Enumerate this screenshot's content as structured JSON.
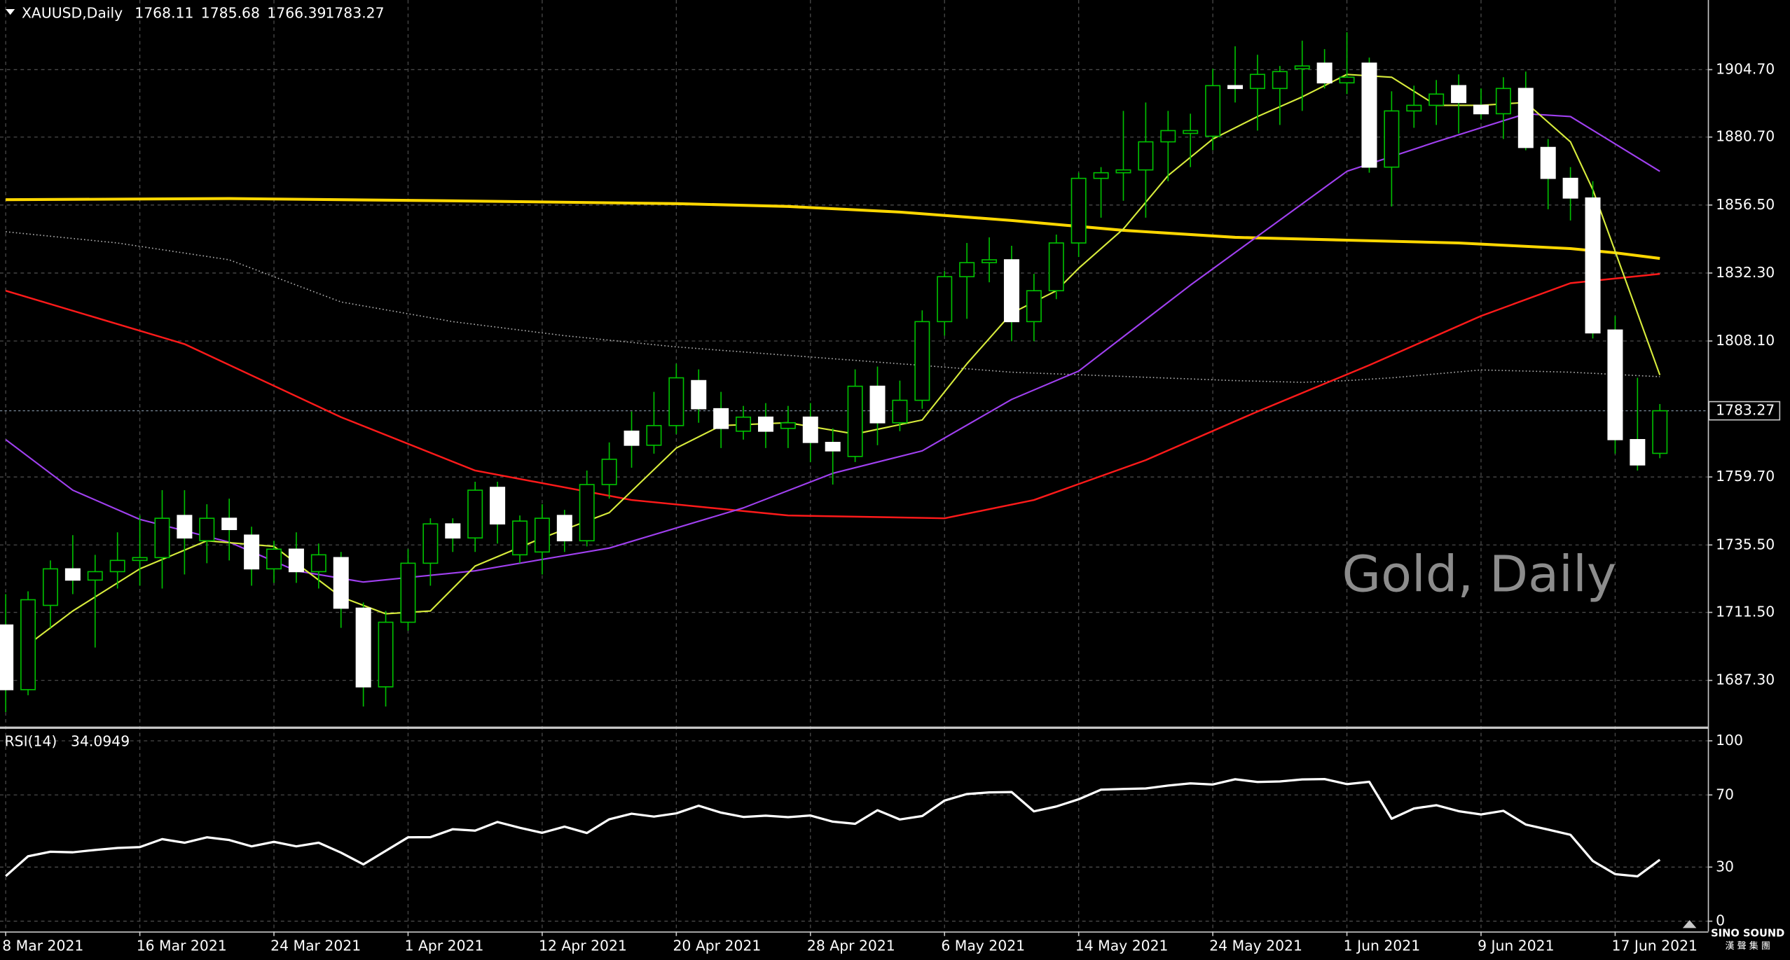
{
  "chart_data": {
    "type": "candlestick",
    "title": "XAUUSD,Daily",
    "watermark": "Gold, Daily",
    "categories": [
      "8 Mar 2021",
      null,
      null,
      null,
      null,
      null,
      "16 Mar 2021",
      null,
      null,
      null,
      null,
      null,
      "24 Mar 2021",
      null,
      null,
      null,
      null,
      null,
      "1 Apr 2021",
      null,
      null,
      null,
      null,
      null,
      "12 Apr 2021",
      null,
      null,
      null,
      null,
      null,
      "20 Apr 2021",
      null,
      null,
      null,
      null,
      null,
      "28 Apr 2021",
      null,
      null,
      null,
      null,
      null,
      "6 May 2021",
      null,
      null,
      null,
      null,
      null,
      "14 May 2021",
      null,
      null,
      null,
      null,
      null,
      "24 May 2021",
      null,
      null,
      null,
      null,
      null,
      "1 Jun 2021",
      null,
      null,
      null,
      null,
      null,
      "9 Jun 2021",
      null,
      null,
      null,
      null,
      null,
      "17 Jun 2021",
      null,
      null
    ],
    "ohlc": [
      [
        1707,
        1718,
        1676,
        1684
      ],
      [
        1684,
        1719,
        1682,
        1716
      ],
      [
        1714,
        1730,
        1706,
        1727
      ],
      [
        1727,
        1739,
        1718,
        1723
      ],
      [
        1723,
        1732,
        1699,
        1726
      ],
      [
        1726,
        1740,
        1720,
        1730
      ],
      [
        1730,
        1746,
        1721,
        1731
      ],
      [
        1731,
        1755,
        1720,
        1745
      ],
      [
        1746,
        1755,
        1725,
        1738
      ],
      [
        1737,
        1750,
        1729,
        1745
      ],
      [
        1745,
        1752,
        1730,
        1741
      ],
      [
        1739,
        1742,
        1721,
        1727
      ],
      [
        1727,
        1737,
        1722,
        1734
      ],
      [
        1734,
        1740,
        1722,
        1726
      ],
      [
        1726,
        1736,
        1720,
        1732
      ],
      [
        1731,
        1733,
        1706,
        1713
      ],
      [
        1713,
        1715,
        1678,
        1685
      ],
      [
        1685,
        1712,
        1678,
        1708
      ],
      [
        1708,
        1734,
        1705,
        1729
      ],
      [
        1729,
        1745,
        1721,
        1743
      ],
      [
        1743,
        1745,
        1733,
        1738
      ],
      [
        1738,
        1758,
        1733,
        1755
      ],
      [
        1756,
        1758,
        1736,
        1743
      ],
      [
        1732,
        1746,
        1729,
        1744
      ],
      [
        1733,
        1750,
        1725,
        1745
      ],
      [
        1746,
        1748,
        1733,
        1737
      ],
      [
        1737,
        1762,
        1735,
        1757
      ],
      [
        1757,
        1772,
        1752,
        1766
      ],
      [
        1776,
        1783,
        1763,
        1771
      ],
      [
        1771,
        1790,
        1768,
        1778
      ],
      [
        1778,
        1800,
        1775,
        1795
      ],
      [
        1794,
        1798,
        1779,
        1784
      ],
      [
        1784,
        1790,
        1770,
        1777
      ],
      [
        1776,
        1785,
        1773,
        1781
      ],
      [
        1781,
        1786,
        1770,
        1776
      ],
      [
        1777,
        1785,
        1770,
        1779
      ],
      [
        1781,
        1786,
        1765,
        1772
      ],
      [
        1772,
        1777,
        1757,
        1769
      ],
      [
        1767,
        1798,
        1765,
        1792
      ],
      [
        1792,
        1799,
        1771,
        1779
      ],
      [
        1779,
        1794,
        1776,
        1787
      ],
      [
        1787,
        1819,
        1784,
        1815
      ],
      [
        1815,
        1833,
        1810,
        1831
      ],
      [
        1831,
        1843,
        1816,
        1836
      ],
      [
        1836,
        1845,
        1829,
        1837
      ],
      [
        1837,
        1842,
        1808,
        1815
      ],
      [
        1815,
        1832,
        1808,
        1826
      ],
      [
        1826,
        1846,
        1823,
        1843
      ],
      [
        1843,
        1868,
        1838,
        1866
      ],
      [
        1866,
        1870,
        1852,
        1868
      ],
      [
        1868,
        1890,
        1858,
        1869
      ],
      [
        1869,
        1893,
        1852,
        1879
      ],
      [
        1879,
        1890,
        1865,
        1883
      ],
      [
        1882,
        1889,
        1870,
        1883
      ],
      [
        1881,
        1905,
        1876,
        1899
      ],
      [
        1899,
        1913,
        1893,
        1898
      ],
      [
        1898,
        1910,
        1883,
        1903
      ],
      [
        1898,
        1906,
        1885,
        1904
      ],
      [
        1905,
        1915,
        1890,
        1906
      ],
      [
        1907,
        1912,
        1898,
        1900
      ],
      [
        1900,
        1918,
        1896,
        1902
      ],
      [
        1907,
        1909,
        1868,
        1870
      ],
      [
        1870,
        1897,
        1856,
        1890
      ],
      [
        1890,
        1899,
        1884,
        1892
      ],
      [
        1892,
        1901,
        1885,
        1896
      ],
      [
        1899,
        1903,
        1882,
        1893
      ],
      [
        1892,
        1898,
        1887,
        1889
      ],
      [
        1889,
        1902,
        1880,
        1898
      ],
      [
        1898,
        1904,
        1876,
        1877
      ],
      [
        1877,
        1880,
        1855,
        1866
      ],
      [
        1866,
        1870,
        1851,
        1859
      ],
      [
        1859,
        1865,
        1809,
        1811
      ],
      [
        1812,
        1817,
        1768,
        1773
      ],
      [
        1773,
        1795,
        1762,
        1764
      ],
      [
        1768.11,
        1785.68,
        1766.39,
        1783.27
      ]
    ],
    "up_color": "#000000",
    "down_color": "#ffffff",
    "wick_color": "#00c000",
    "overlays": [
      {
        "color": "#ffd700",
        "width": 2.5,
        "dash": "none",
        "x": [
          0,
          10,
          20,
          30,
          35,
          40,
          45,
          50,
          55,
          60,
          65,
          70,
          72,
          74
        ],
        "values": [
          1858.4,
          1858.8,
          1858.0,
          1857.0,
          1856.0,
          1854.0,
          1851.0,
          1847.5,
          1845.0,
          1844.0,
          1843.0,
          1841.0,
          1839.5,
          1837.5
        ]
      },
      {
        "color": "#b0b0b0",
        "width": 1,
        "dash": "1 2",
        "x": [
          0,
          5,
          10,
          15,
          20,
          25,
          30,
          35,
          40,
          45,
          50,
          55,
          58,
          60,
          62,
          66,
          70,
          74
        ],
        "values": [
          1847,
          1843,
          1837,
          1822,
          1815,
          1810,
          1806,
          1803,
          1800,
          1797,
          1795.5,
          1794,
          1793.4,
          1794,
          1795,
          1797.8,
          1797,
          1795.4
        ]
      },
      {
        "color": "#ff1a1a",
        "width": 1.5,
        "dash": "none",
        "x": [
          0,
          8,
          15,
          21,
          28,
          35,
          42,
          46,
          51,
          56,
          61,
          66,
          70,
          74
        ],
        "values": [
          1826,
          1807,
          1781,
          1762,
          1751.5,
          1746,
          1745,
          1751.5,
          1765.7,
          1783,
          1799.5,
          1817,
          1828.7,
          1832
        ]
      },
      {
        "color": "#a040f0",
        "width": 1.3,
        "dash": "none",
        "x": [
          0,
          3,
          6,
          10,
          13,
          16,
          21,
          27,
          33,
          37,
          41,
          45,
          48,
          53,
          60,
          64,
          68,
          70,
          74
        ],
        "values": [
          1773,
          1755,
          1744.6,
          1736.5,
          1726.3,
          1722.3,
          1726.3,
          1734.4,
          1748.7,
          1761,
          1769,
          1787.3,
          1797.4,
          1828,
          1868.5,
          1879,
          1889,
          1888,
          1868.5
        ]
      },
      {
        "color": "#d8ec3c",
        "width": 1.3,
        "dash": "none",
        "x": [
          1,
          3,
          6,
          9,
          12,
          15,
          17,
          19,
          21,
          24,
          27,
          30,
          32,
          35,
          38,
          41,
          43,
          45,
          47,
          48,
          50,
          52,
          54,
          56,
          58,
          60,
          62,
          64,
          66,
          68,
          70,
          71,
          72,
          74
        ],
        "values": [
          1700,
          1712,
          1727,
          1737,
          1735,
          1717,
          1711,
          1712,
          1728,
          1738,
          1747,
          1770,
          1778,
          1779,
          1775,
          1780,
          1800,
          1818,
          1826,
          1834,
          1848,
          1867,
          1880,
          1888,
          1895,
          1903,
          1902,
          1892,
          1892,
          1893,
          1879,
          1862,
          1840,
          1796
        ]
      }
    ],
    "ylim": [
      1671.06,
      1929.08
    ],
    "yticks": [
      {
        "value": 1904.7,
        "label": "1904.70"
      },
      {
        "value": 1880.7,
        "label": "1880.70"
      },
      {
        "value": 1856.5,
        "label": "1856.50"
      },
      {
        "value": 1832.3,
        "label": "1832.30"
      },
      {
        "value": 1808.1,
        "label": "1808.10"
      },
      {
        "value": 1759.7,
        "label": "1759.70"
      },
      {
        "value": 1735.5,
        "label": "1735.50"
      },
      {
        "value": 1711.5,
        "label": "1711.50"
      },
      {
        "value": 1687.3,
        "label": "1687.30"
      }
    ],
    "grid": true,
    "indicator": {
      "type": "line",
      "title": "RSI(14)",
      "color": "#ffffff",
      "values": [
        25,
        36,
        38.5,
        38.2,
        39.5,
        40.6,
        41.1,
        45.5,
        43.5,
        46.5,
        45,
        41.5,
        44,
        41.5,
        43.5,
        38,
        31.5,
        39,
        46.5,
        46.6,
        51,
        50.2,
        55,
        51.8,
        49,
        52.4,
        48.9,
        56.5,
        59.6,
        58,
        59.8,
        64,
        60.2,
        57.8,
        58.5,
        57.7,
        58.6,
        55.2,
        54,
        61.5,
        56.4,
        58.3,
        66.9,
        70.5,
        71.4,
        71.6,
        60.9,
        63.6,
        67.6,
        72.9,
        73.3,
        73.6,
        75.2,
        76.4,
        75.8,
        78.7,
        77.2,
        77.5,
        78.6,
        78.8,
        76,
        77.3,
        56.8,
        62.5,
        64.3,
        61,
        59.2,
        61.2,
        53.6,
        50.8,
        47.9,
        33.4,
        26.1,
        24.9,
        34.0949
      ],
      "ylim": [
        -5.06,
        106.33
      ],
      "yticks": [
        100,
        70,
        30,
        0
      ]
    },
    "logo": {
      "name": "SINO SOUND",
      "subtitle": "漢 聲 集 團"
    }
  }
}
